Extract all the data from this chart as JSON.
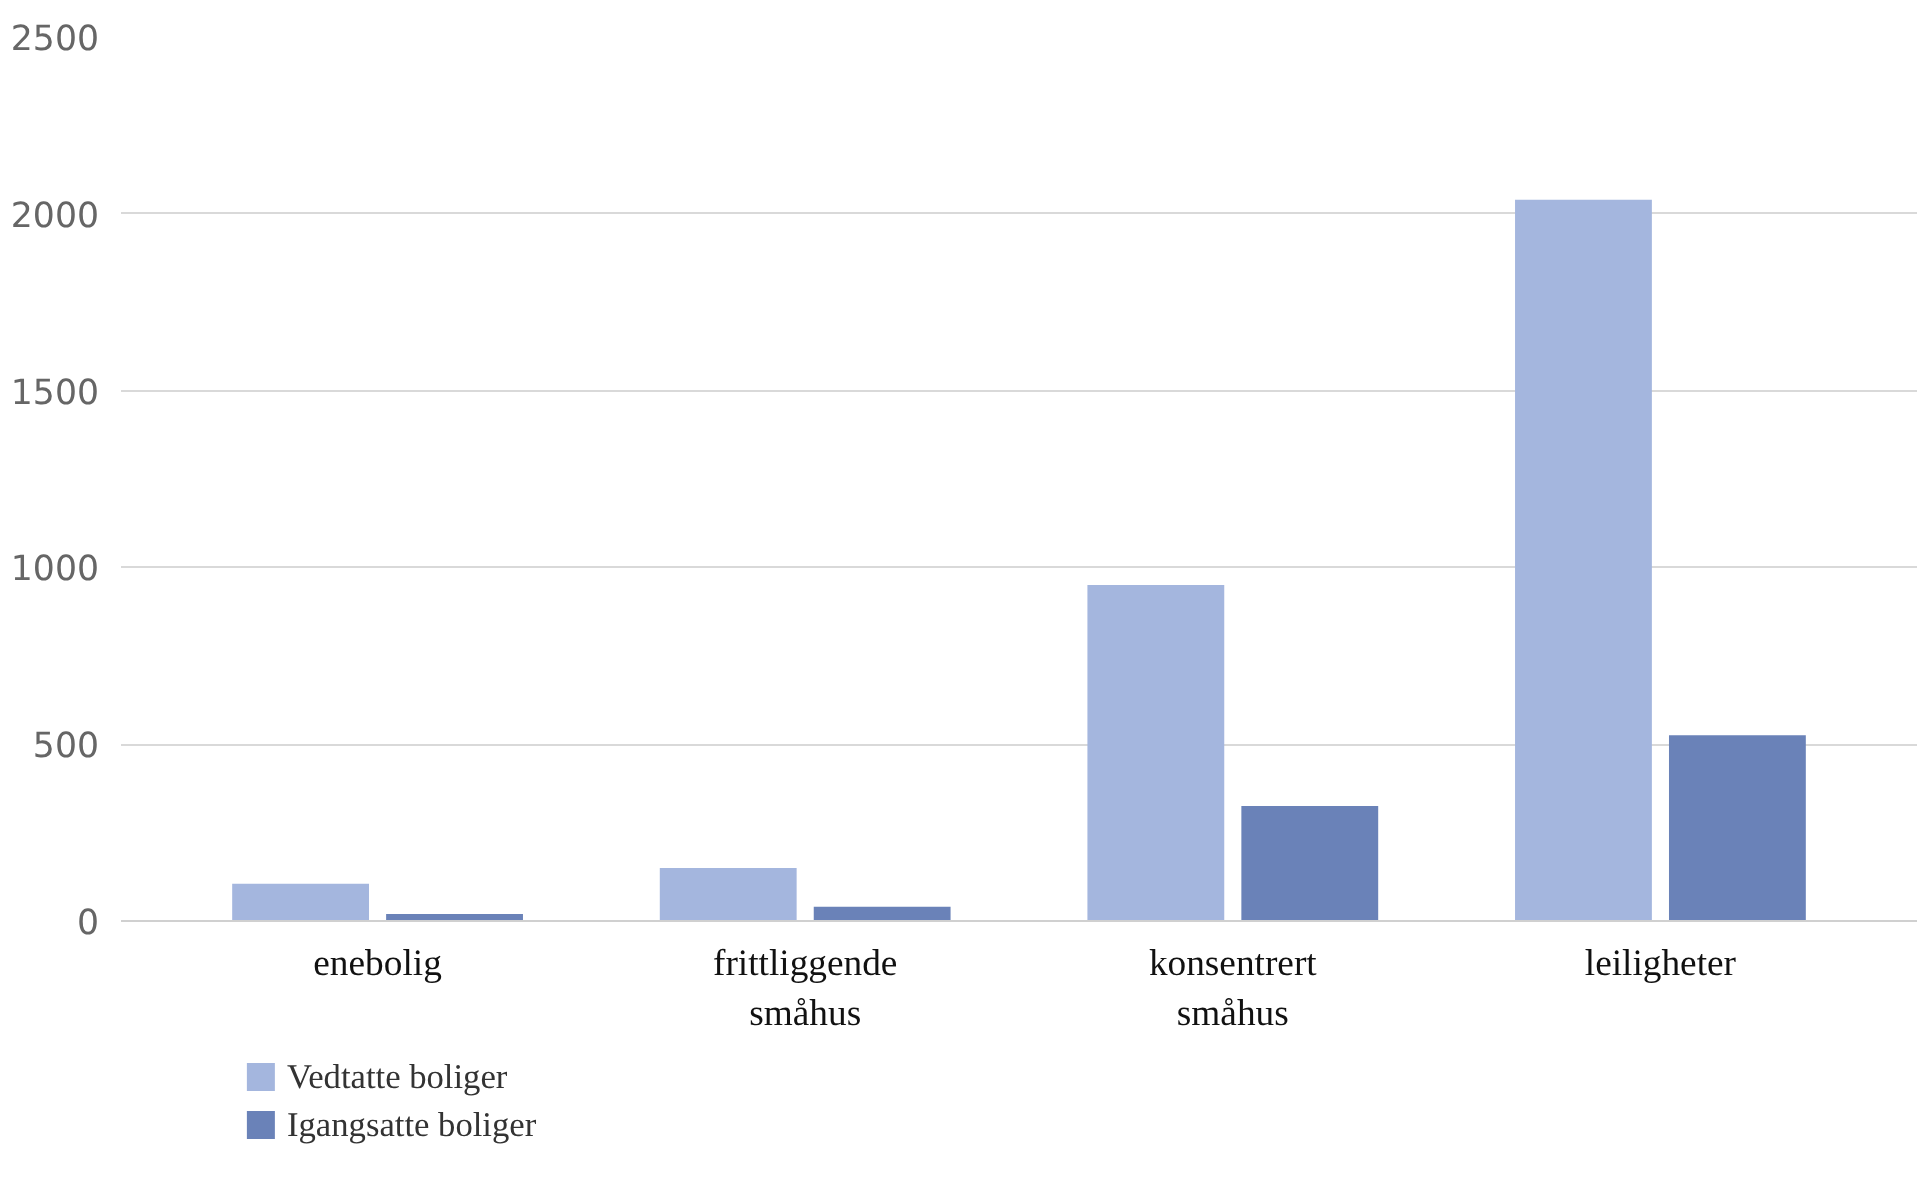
{
  "chart_data": {
    "type": "bar",
    "categories": [
      "enebolig",
      "frittliggende småhus",
      "konsentrert småhus",
      "leiligheter"
    ],
    "series": [
      {
        "name": "Vedtatte boliger",
        "color": "#a4b6de",
        "values": [
          105,
          150,
          950,
          2040
        ]
      },
      {
        "name": "Igangsatte boliger",
        "color": "#6a82b8",
        "values": [
          20,
          40,
          325,
          525
        ]
      }
    ],
    "ylim": [
      0,
      2500
    ],
    "yticks": [
      0,
      500,
      1000,
      1500,
      2000,
      2500
    ],
    "grid": "y",
    "legend": "bottom left"
  }
}
